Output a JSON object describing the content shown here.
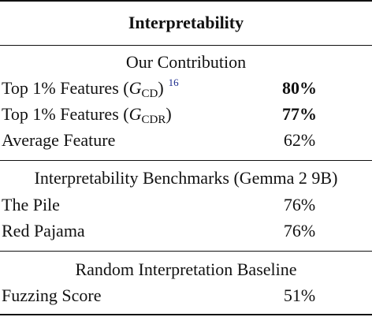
{
  "table": {
    "header": "Interpretability",
    "sections": [
      {
        "title": "Our Contribution",
        "rows": [
          {
            "label_prefix": "Top 1% Features (",
            "math_var": "G",
            "math_sub": "CD",
            "label_suffix": ")",
            "footnote": "16",
            "value": "80%"
          },
          {
            "label_prefix": "Top 1% Features (",
            "math_var": "G",
            "math_sub": "CDR",
            "label_suffix": ")",
            "value": "77%"
          },
          {
            "label": "Average Feature",
            "value": "62%"
          }
        ]
      },
      {
        "title": "Interpretability Benchmarks (Gemma 2 9B)",
        "rows": [
          {
            "label": "The Pile",
            "value": "76%"
          },
          {
            "label": "Red Pajama",
            "value": "76%"
          }
        ]
      },
      {
        "title": "Random Interpretation Baseline",
        "rows": [
          {
            "label": "Fuzzing Score",
            "value": "51%"
          }
        ]
      }
    ]
  }
}
